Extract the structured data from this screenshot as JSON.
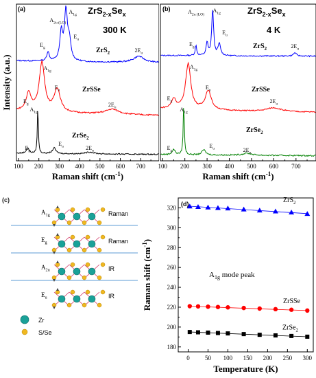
{
  "panel_a": {
    "letter": "(a)",
    "title_main": "ZrS",
    "title_sub1": "2-x",
    "title_mid": "Se",
    "title_sub2": "x",
    "temperature": "300 K"
  },
  "panel_b": {
    "letter": "(b)",
    "title_main": "ZrS",
    "title_sub1": "2-x",
    "title_mid": "Se",
    "title_sub2": "x",
    "temperature": "4 K"
  },
  "panel_c": {
    "letter": "(c)",
    "modes": [
      {
        "mode": "A1g",
        "activity": "Raman"
      },
      {
        "mode": "Eg",
        "activity": "Raman"
      },
      {
        "mode": "A2u",
        "activity": "IR"
      },
      {
        "mode": "Eu",
        "activity": "IR"
      }
    ],
    "legend": [
      {
        "label": "Zr",
        "color": "#1aa198"
      },
      {
        "label": "S/Se",
        "color": "#f0b820"
      }
    ]
  },
  "panel_d": {
    "letter": "(d)",
    "annotation": "A1g mode peak"
  },
  "chart_data": [
    {
      "type": "line",
      "panel": "(a)",
      "xlabel": "Raman shift (cm-1)",
      "ylabel": "Intensity (a.u.)",
      "xlim": [
        90,
        790
      ],
      "xticks": [
        100,
        200,
        300,
        400,
        500,
        600,
        700
      ],
      "series": [
        {
          "name": "ZrS2",
          "color": "#0000ff",
          "peaks": [
            {
              "label": "Eg",
              "x": 245
            },
            {
              "label": "A2u (LO)",
              "x": 310
            },
            {
              "label": "A1g",
              "x": 333
            },
            {
              "label": "Eu",
              "x": 350
            },
            {
              "label": "2Eu",
              "x": 690
            }
          ]
        },
        {
          "name": "ZrSSe",
          "color": "#ff0000",
          "peaks": [
            {
              "label": "Eg",
              "x": 150
            },
            {
              "label": "A1g",
              "x": 215
            },
            {
              "label": "Eu",
              "x": 290
            },
            {
              "label": "2Eu",
              "x": 560
            }
          ]
        },
        {
          "name": "ZrSe2",
          "color": "#000000",
          "peaks": [
            {
              "label": "Eg",
              "x": 145
            },
            {
              "label": "A1g",
              "x": 195
            },
            {
              "label": "Eu",
              "x": 275
            },
            {
              "label": "2Eu",
              "x": 450
            }
          ]
        }
      ]
    },
    {
      "type": "line",
      "panel": "(b)",
      "xlabel": "Raman shift (cm-1)",
      "ylabel": "",
      "xlim": [
        90,
        790
      ],
      "xticks": [
        100,
        200,
        300,
        400,
        500,
        600,
        700
      ],
      "series": [
        {
          "name": "ZrS2",
          "color": "#0000ff",
          "peaks": [
            {
              "label": "Eg",
              "x": 250
            },
            {
              "label": "A2u (LO)",
              "x": 300
            },
            {
              "label": "A1g",
              "x": 325
            },
            {
              "label": "Eu",
              "x": 355
            },
            {
              "label": "2Eu",
              "x": 695
            }
          ]
        },
        {
          "name": "ZrSSe",
          "color": "#ff0000",
          "peaks": [
            {
              "label": "Eg",
              "x": 150
            },
            {
              "label": "A1g",
              "x": 215
            },
            {
              "label": "Eu",
              "x": 305
            },
            {
              "label": "2Eu",
              "x": 600
            }
          ]
        },
        {
          "name": "ZrSe2",
          "color": "#008000",
          "peaks": [
            {
              "label": "Eg",
              "x": 150
            },
            {
              "label": "A1g",
              "x": 195
            },
            {
              "label": "Eu",
              "x": 285
            },
            {
              "label": "2Eu",
              "x": 480
            }
          ]
        }
      ]
    },
    {
      "type": "scatter",
      "panel": "(d)",
      "xlabel": "Temperature (K)",
      "ylabel": "Raman shift (cm-1)",
      "xlim": [
        -25,
        315
      ],
      "ylim": [
        175,
        330
      ],
      "xticks": [
        0,
        50,
        100,
        150,
        200,
        250,
        300
      ],
      "yticks": [
        180,
        190,
        200,
        210,
        220,
        230,
        240,
        250,
        260,
        270,
        280,
        290,
        300,
        310,
        320,
        330
      ],
      "series": [
        {
          "name": "ZrS2",
          "color": "#0000ff",
          "marker": "triangle",
          "x": [
            4,
            25,
            50,
            75,
            100,
            140,
            180,
            220,
            260,
            300
          ],
          "y": [
            321.5,
            321.0,
            320.5,
            320.0,
            319.5,
            318.5,
            317.5,
            316.5,
            315.5,
            314.0
          ],
          "fit": [
            [
              0,
              321.8
            ],
            [
              300,
              314.2
            ]
          ]
        },
        {
          "name": "ZrSSe",
          "color": "#ff0000",
          "marker": "circle",
          "x": [
            4,
            25,
            50,
            75,
            100,
            140,
            180,
            220,
            260,
            300
          ],
          "y": [
            221.0,
            220.8,
            220.5,
            220.2,
            219.8,
            219.2,
            218.6,
            218.0,
            217.4,
            216.6
          ],
          "fit": [
            [
              0,
              221.0
            ],
            [
              300,
              216.6
            ]
          ]
        },
        {
          "name": "ZrSe2",
          "color": "#000000",
          "marker": "square",
          "x": [
            4,
            25,
            50,
            75,
            100,
            140,
            180,
            220,
            260,
            300
          ],
          "y": [
            195.0,
            194.7,
            194.4,
            194.0,
            193.6,
            192.9,
            192.2,
            191.6,
            191.0,
            190.3
          ],
          "fit": [
            [
              0,
              195.1
            ],
            [
              300,
              190.2
            ]
          ]
        }
      ]
    }
  ]
}
